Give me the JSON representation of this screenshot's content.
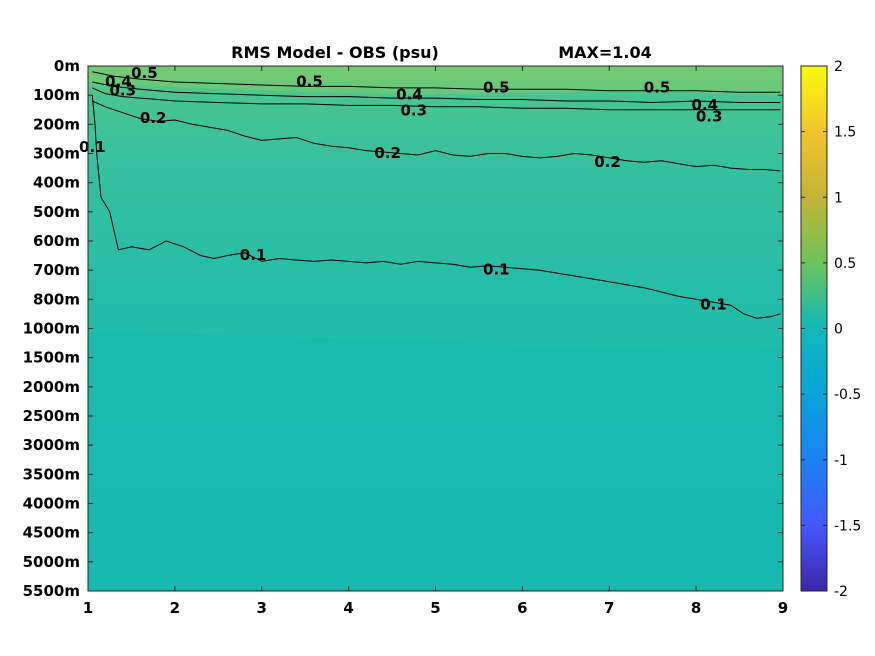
{
  "chart_data": {
    "type": "heatmap",
    "title": "RMS Model - OBS (psu)",
    "annotation": "MAX=1.04",
    "xlabel": "",
    "ylabel": "",
    "x_ticks": [
      1,
      2,
      3,
      4,
      5,
      6,
      7,
      8,
      9
    ],
    "xlim": [
      1,
      9
    ],
    "y_categories": [
      "0m",
      "100m",
      "200m",
      "300m",
      "400m",
      "500m",
      "600m",
      "700m",
      "800m",
      "1000m",
      "1500m",
      "2000m",
      "2500m",
      "3000m",
      "3500m",
      "4000m",
      "4500m",
      "5000m",
      "5500m"
    ],
    "colorbar": {
      "colormap": "parula",
      "range": [
        -2,
        2
      ],
      "ticks": [
        2,
        1.5,
        1,
        0.5,
        0,
        -0.5,
        -1,
        -1.5,
        -2
      ],
      "tick_labels": [
        "2",
        "1.5",
        "1",
        "0.5",
        "0",
        "-0.5",
        "-1",
        "-1.5",
        "-2"
      ]
    },
    "max_value": 1.04,
    "contour_levels": [
      0.1,
      0.2,
      0.3,
      0.4,
      0.5
    ],
    "contours": [
      {
        "level": 0.1,
        "x": [
          1.05,
          1.08,
          1.1,
          1.15,
          1.25,
          1.35,
          1.5,
          1.7,
          1.9,
          2.1,
          2.3,
          2.45,
          2.6,
          2.8,
          3.0,
          3.2,
          3.4,
          3.6,
          3.8,
          4.0,
          4.2,
          4.4,
          4.6,
          4.8,
          5.0,
          5.2,
          5.4,
          5.6,
          5.8,
          6.0,
          6.2,
          6.4,
          6.6,
          6.8,
          7.0,
          7.2,
          7.4,
          7.6,
          7.8,
          8.0,
          8.2,
          8.4,
          8.55,
          8.7,
          8.85,
          8.97
        ],
        "y": [
          1.0,
          2.0,
          3.0,
          4.5,
          5.0,
          6.3,
          6.2,
          6.3,
          6.0,
          6.2,
          6.5,
          6.6,
          6.5,
          6.4,
          6.7,
          6.6,
          6.65,
          6.7,
          6.65,
          6.7,
          6.75,
          6.7,
          6.8,
          6.7,
          6.75,
          6.8,
          6.9,
          6.85,
          6.9,
          6.95,
          7.0,
          7.1,
          7.2,
          7.3,
          7.4,
          7.5,
          7.6,
          7.75,
          7.9,
          8.0,
          8.1,
          8.2,
          8.5,
          8.65,
          8.6,
          8.5
        ]
      },
      {
        "level": 0.2,
        "x": [
          1.05,
          1.2,
          1.4,
          1.6,
          1.8,
          2.0,
          2.2,
          2.4,
          2.6,
          2.8,
          3.0,
          3.2,
          3.4,
          3.6,
          3.8,
          4.0,
          4.2,
          4.4,
          4.6,
          4.8,
          5.0,
          5.2,
          5.4,
          5.6,
          5.8,
          6.0,
          6.2,
          6.4,
          6.6,
          6.8,
          7.0,
          7.2,
          7.4,
          7.6,
          7.8,
          8.0,
          8.2,
          8.4,
          8.6,
          8.8,
          8.97
        ],
        "y": [
          1.2,
          1.4,
          1.6,
          1.8,
          1.9,
          1.85,
          2.0,
          2.1,
          2.2,
          2.4,
          2.55,
          2.5,
          2.45,
          2.65,
          2.75,
          2.8,
          2.9,
          2.95,
          3.0,
          3.05,
          2.9,
          3.05,
          3.1,
          3.0,
          3.0,
          3.1,
          3.15,
          3.1,
          3.0,
          3.05,
          3.15,
          3.25,
          3.3,
          3.25,
          3.35,
          3.45,
          3.4,
          3.5,
          3.55,
          3.55,
          3.6
        ]
      },
      {
        "level": 0.3,
        "x": [
          1.05,
          1.2,
          1.4,
          1.6,
          1.8,
          2.0,
          2.5,
          3.0,
          3.5,
          4.0,
          4.5,
          5.0,
          5.5,
          6.0,
          6.5,
          7.0,
          7.5,
          8.0,
          8.5,
          8.97
        ],
        "y": [
          0.75,
          0.95,
          1.05,
          1.1,
          1.15,
          1.2,
          1.25,
          1.3,
          1.3,
          1.35,
          1.35,
          1.4,
          1.4,
          1.45,
          1.45,
          1.5,
          1.5,
          1.5,
          1.5,
          1.5
        ]
      },
      {
        "level": 0.4,
        "x": [
          1.05,
          1.3,
          1.6,
          2.0,
          2.5,
          3.0,
          3.5,
          4.0,
          4.5,
          5.0,
          5.5,
          6.0,
          6.5,
          7.0,
          7.5,
          8.0,
          8.5,
          8.97
        ],
        "y": [
          0.55,
          0.7,
          0.8,
          0.9,
          0.95,
          1.0,
          1.05,
          1.05,
          1.1,
          1.1,
          1.15,
          1.15,
          1.2,
          1.2,
          1.25,
          1.2,
          1.25,
          1.25
        ]
      },
      {
        "level": 0.5,
        "x": [
          1.05,
          1.3,
          1.6,
          2.0,
          2.5,
          3.0,
          3.5,
          4.0,
          4.5,
          5.0,
          5.5,
          6.0,
          6.5,
          7.0,
          7.5,
          8.0,
          8.5,
          8.97
        ],
        "y": [
          0.2,
          0.35,
          0.45,
          0.55,
          0.6,
          0.65,
          0.7,
          0.7,
          0.75,
          0.75,
          0.8,
          0.8,
          0.8,
          0.85,
          0.85,
          0.85,
          0.9,
          0.9
        ]
      }
    ],
    "contour_labels": [
      {
        "text": "0.5",
        "x": 1.65,
        "y": 0.25
      },
      {
        "text": "0.4",
        "x": 1.35,
        "y": 0.55
      },
      {
        "text": "0.3",
        "x": 1.4,
        "y": 0.85
      },
      {
        "text": "0.2",
        "x": 1.75,
        "y": 1.8
      },
      {
        "text": "0.1",
        "x": 1.05,
        "y": 2.8
      },
      {
        "text": "0.5",
        "x": 3.55,
        "y": 0.55
      },
      {
        "text": "0.4",
        "x": 4.7,
        "y": 1.0
      },
      {
        "text": "0.3",
        "x": 4.75,
        "y": 1.55
      },
      {
        "text": "0.2",
        "x": 4.45,
        "y": 3.0
      },
      {
        "text": "0.1",
        "x": 2.9,
        "y": 6.5
      },
      {
        "text": "0.5",
        "x": 5.7,
        "y": 0.75
      },
      {
        "text": "0.1",
        "x": 5.7,
        "y": 7.0
      },
      {
        "text": "0.2",
        "x": 6.98,
        "y": 3.3
      },
      {
        "text": "0.5",
        "x": 7.55,
        "y": 0.75
      },
      {
        "text": "0.4",
        "x": 8.1,
        "y": 1.35
      },
      {
        "text": "0.3",
        "x": 8.15,
        "y": 1.75
      },
      {
        "text": "0.1",
        "x": 8.2,
        "y": 8.2
      }
    ],
    "grid": false,
    "legend": "none"
  }
}
